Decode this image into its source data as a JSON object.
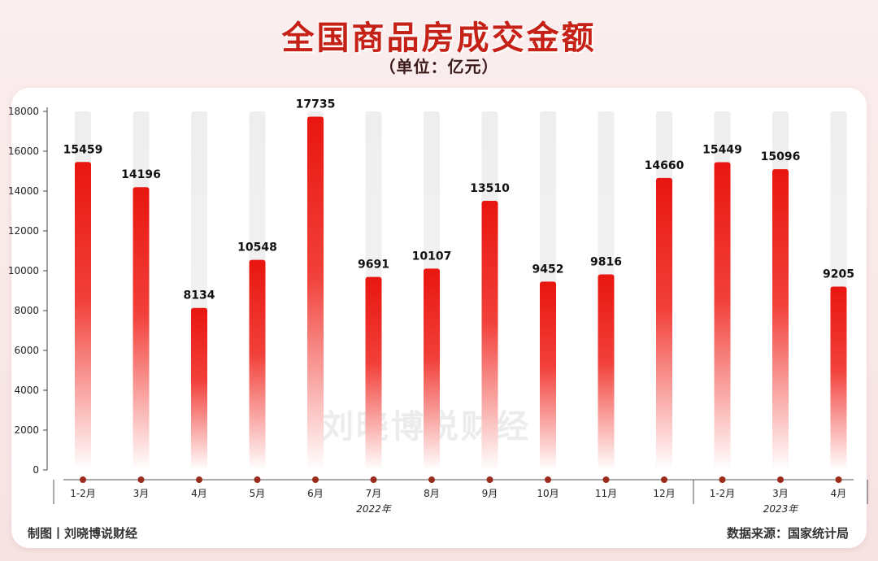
{
  "header": {
    "title": "全国商品房成交金额",
    "subtitle": "（单位：亿元）"
  },
  "footer": {
    "credit": "制图丨刘晓博说财经",
    "source": "数据来源：国家统计局"
  },
  "watermark": "刘晓博说财经",
  "chart_data": {
    "type": "bar",
    "categories": [
      "1-2月",
      "3月",
      "4月",
      "5月",
      "6月",
      "7月",
      "8月",
      "9月",
      "10月",
      "11月",
      "12月",
      "1-2月",
      "3月",
      "4月"
    ],
    "values": [
      15459,
      14196,
      8134,
      10548,
      17735,
      9691,
      10107,
      13510,
      9452,
      9816,
      14660,
      15449,
      15096,
      9205
    ],
    "groups": [
      {
        "label": "2022年",
        "start": 0,
        "end": 10
      },
      {
        "label": "2023年",
        "start": 11,
        "end": 13
      }
    ],
    "ylim": [
      0,
      18000
    ],
    "yticks": [
      0,
      2000,
      4000,
      6000,
      8000,
      10000,
      12000,
      14000,
      16000,
      18000
    ],
    "colors": {
      "bar_top": "#e8160f",
      "bar_bottom": "#ffffff",
      "track": "#eeeeee",
      "axis": "#444444",
      "dot": "#9a2a1a"
    },
    "grid": false,
    "legend": "none"
  }
}
